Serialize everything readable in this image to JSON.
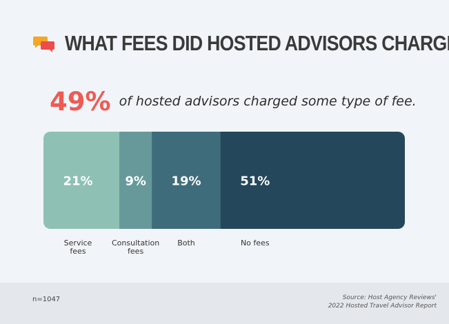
{
  "header": {
    "title": "WHAT FEES DID HOSTED ADVISORS CHARGE?",
    "icon": "chat-bubbles-icon",
    "icon_colors": [
      "#f5a623",
      "#ee4b4b"
    ]
  },
  "highlight": {
    "value": "49%",
    "text": "of hosted advisors charged some type of fee."
  },
  "chart_data": {
    "type": "bar",
    "orientation": "horizontal-stacked",
    "categories": [
      "Service fees",
      "Consultation fees",
      "Both",
      "No fees"
    ],
    "values": [
      21,
      9,
      19,
      51
    ],
    "value_labels": [
      "21%",
      "9%",
      "19%",
      "51%"
    ],
    "label_lines": [
      [
        "Service",
        "fees"
      ],
      [
        "Consultation",
        "fees"
      ],
      [
        "Both"
      ],
      [
        "No fees"
      ]
    ],
    "colors": [
      "#8ec1b3",
      "#67999b",
      "#3f6c7a",
      "#24475b"
    ],
    "xlim": [
      0,
      100
    ],
    "grid": false
  },
  "footer": {
    "sample": "n=1047",
    "source_line1": "Source: Host Agency Reviews'",
    "source_line2": "2022 Hosted Travel Advisor Report"
  }
}
